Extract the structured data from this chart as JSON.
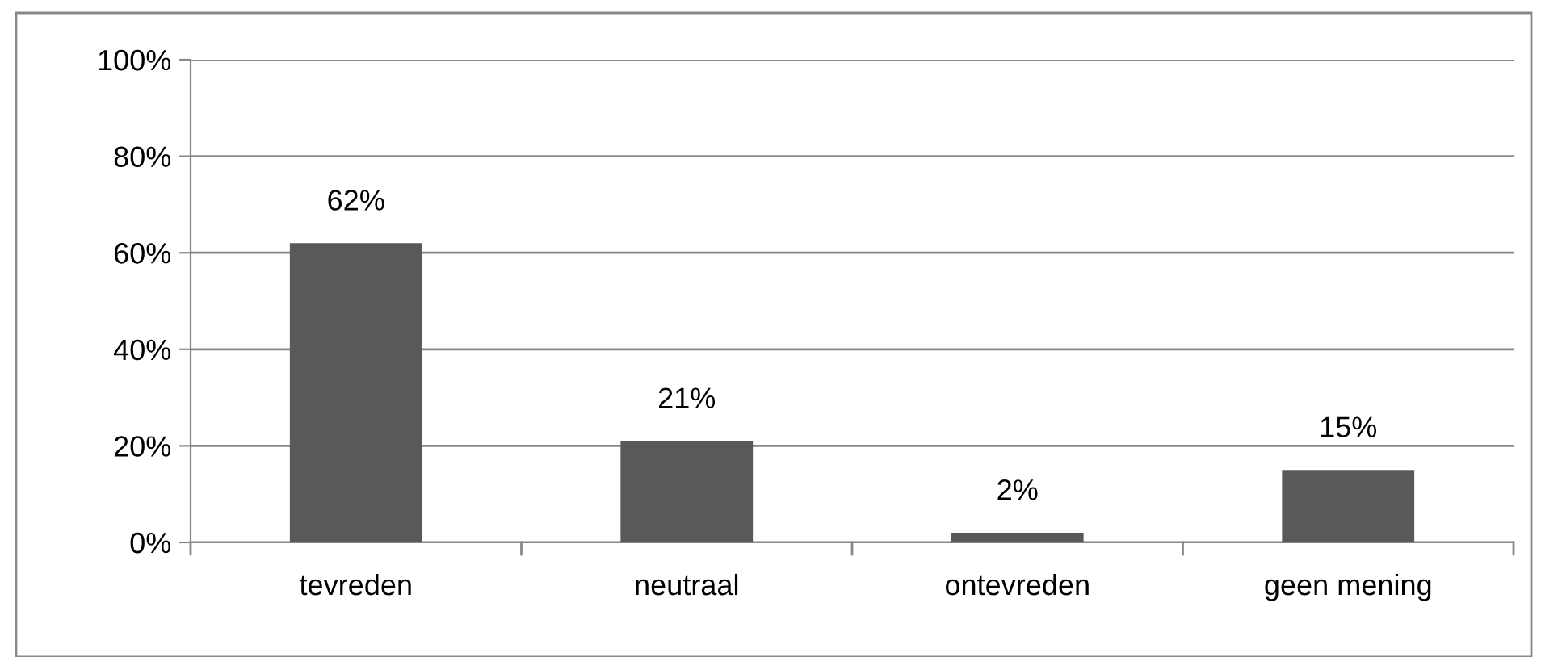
{
  "chart_data": {
    "type": "bar",
    "categories": [
      "tevreden",
      "neutraal",
      "ontevreden",
      "geen mening"
    ],
    "values": [
      62,
      21,
      2,
      15
    ],
    "color": "#595959",
    "value_labels": [
      "62%",
      "21%",
      "2%",
      "15%"
    ],
    "ylim": [
      0,
      100
    ],
    "yticks": [
      {
        "value": 0,
        "label": "0%"
      },
      {
        "value": 20,
        "label": "20%"
      },
      {
        "value": 40,
        "label": "40%"
      },
      {
        "value": 60,
        "label": "60%"
      },
      {
        "value": 80,
        "label": "80%"
      },
      {
        "value": 100,
        "label": "100%"
      }
    ],
    "grid": "y",
    "legend": false
  }
}
